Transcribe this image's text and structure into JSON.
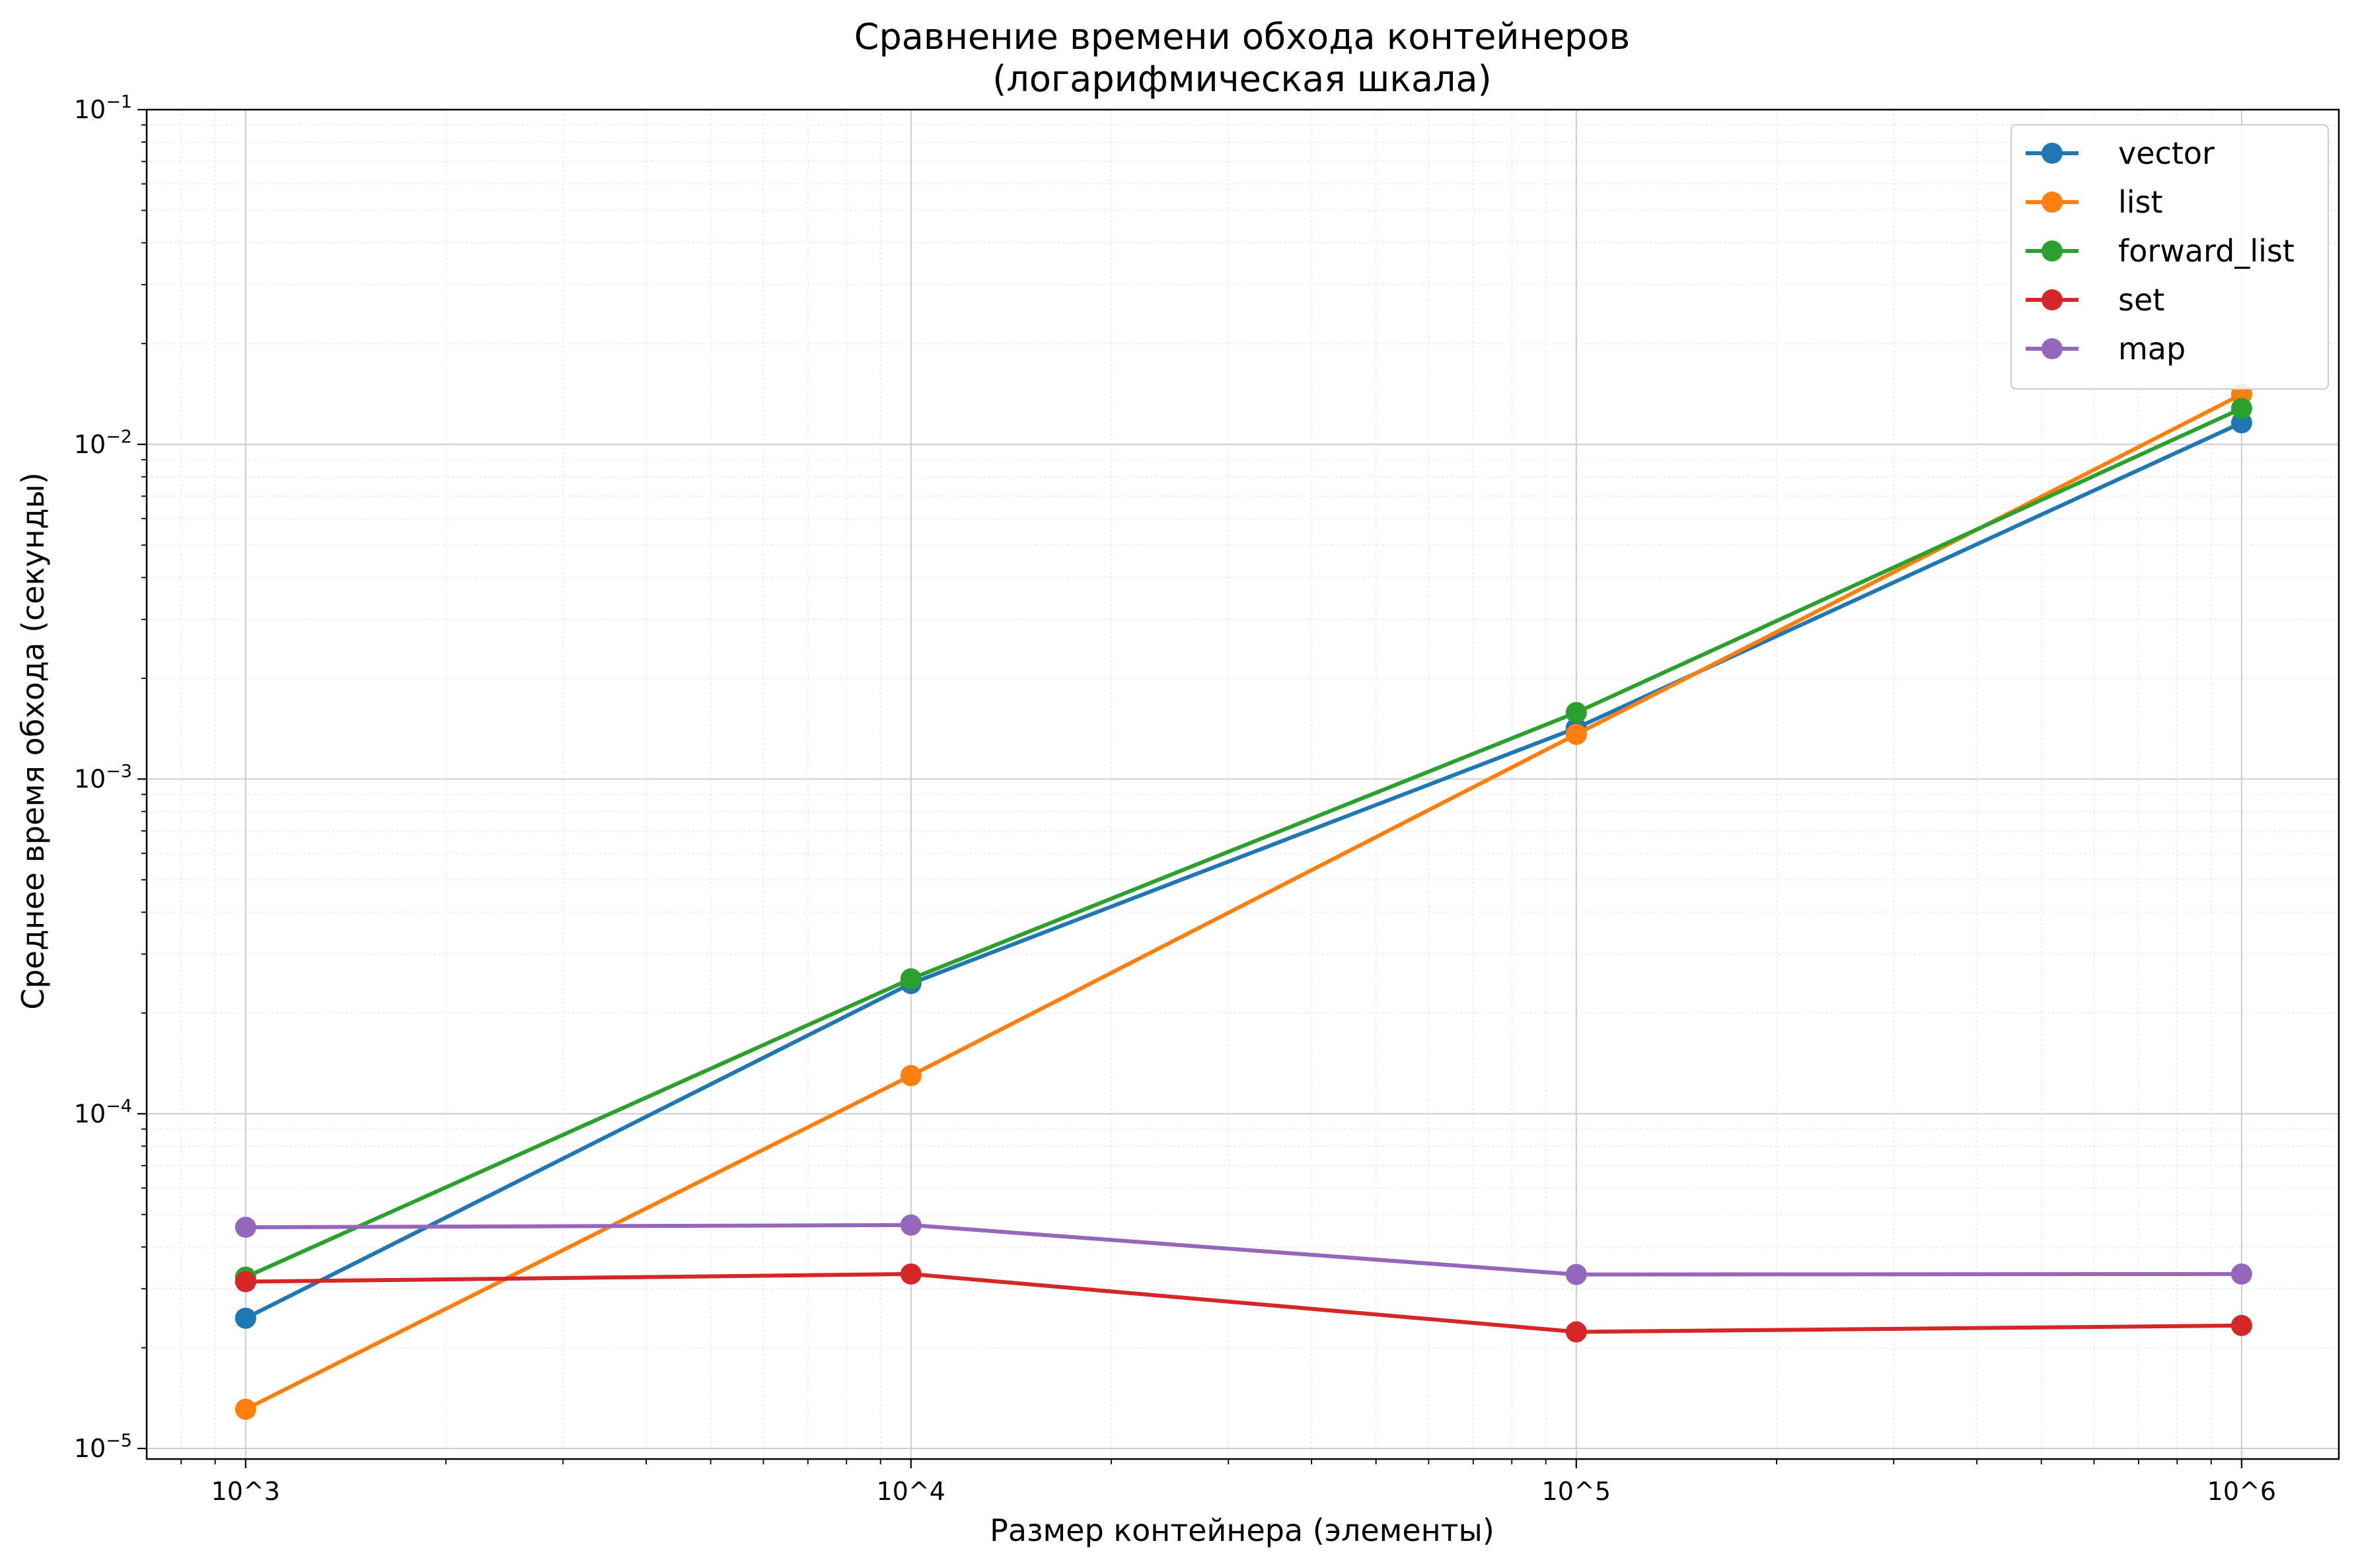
{
  "chart_data": {
    "type": "line",
    "title_lines": [
      "Сравнение времени обхода контейнеров",
      "(логарифмическая шкала)"
    ],
    "xlabel": "Размер контейнера (элементы)",
    "ylabel": "Среднее время обхода (секунды)",
    "x_scale": "log",
    "y_scale": "log",
    "x": [
      1000,
      10000,
      100000,
      1000000
    ],
    "x_tick_labels": [
      "10^3",
      "10^4",
      "10^5",
      "10^6"
    ],
    "y_ticks": [
      {
        "value": 1e-05,
        "base": "10",
        "exp": "−5"
      },
      {
        "value": 0.0001,
        "base": "10",
        "exp": "−4"
      },
      {
        "value": 0.001,
        "base": "10",
        "exp": "−3"
      },
      {
        "value": 0.01,
        "base": "10",
        "exp": "−2"
      },
      {
        "value": 0.1,
        "base": "10",
        "exp": "−1"
      }
    ],
    "xlim": [
      710,
      1400000
    ],
    "ylim": [
      9.3e-06,
      0.1
    ],
    "grid": true,
    "legend_position": "top-right",
    "series": [
      {
        "name": "vector",
        "color": "#1f77b4",
        "values": [
          2.45e-05,
          0.000245,
          0.00142,
          0.0116
        ]
      },
      {
        "name": "list",
        "color": "#ff7f0e",
        "values": [
          1.31e-05,
          0.00013,
          0.00136,
          0.0141
        ]
      },
      {
        "name": "forward_list",
        "color": "#2ca02c",
        "values": [
          3.25e-05,
          0.000253,
          0.00158,
          0.0128
        ]
      },
      {
        "name": "set",
        "color": "#d62728",
        "values": [
          3.15e-05,
          3.32e-05,
          2.23e-05,
          2.33e-05
        ]
      },
      {
        "name": "map",
        "color": "#9467bd",
        "values": [
          4.58e-05,
          4.65e-05,
          3.31e-05,
          3.32e-05
        ]
      }
    ]
  }
}
